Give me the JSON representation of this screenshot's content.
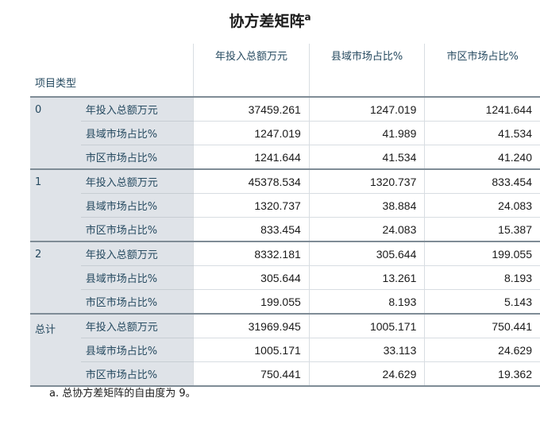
{
  "title": "协方差矩阵",
  "title_sup": "a",
  "header": {
    "row_label": "项目类型",
    "columns": [
      "年投入总额万元",
      "县域市场占比%",
      "市区市场占比%"
    ]
  },
  "groups": [
    {
      "label": "0",
      "rows": [
        {
          "label": "年投入总额万元",
          "values": [
            "37459.261",
            "1247.019",
            "1241.644"
          ]
        },
        {
          "label": "县域市场占比%",
          "values": [
            "1247.019",
            "41.989",
            "41.534"
          ]
        },
        {
          "label": "市区市场占比%",
          "values": [
            "1241.644",
            "41.534",
            "41.240"
          ]
        }
      ]
    },
    {
      "label": "1",
      "rows": [
        {
          "label": "年投入总额万元",
          "values": [
            "45378.534",
            "1320.737",
            "833.454"
          ]
        },
        {
          "label": "县域市场占比%",
          "values": [
            "1320.737",
            "38.884",
            "24.083"
          ]
        },
        {
          "label": "市区市场占比%",
          "values": [
            "833.454",
            "24.083",
            "15.387"
          ]
        }
      ]
    },
    {
      "label": "2",
      "rows": [
        {
          "label": "年投入总额万元",
          "values": [
            "8332.181",
            "305.644",
            "199.055"
          ]
        },
        {
          "label": "县域市场占比%",
          "values": [
            "305.644",
            "13.261",
            "8.193"
          ]
        },
        {
          "label": "市区市场占比%",
          "values": [
            "199.055",
            "8.193",
            "5.143"
          ]
        }
      ]
    },
    {
      "label": "总计",
      "rows": [
        {
          "label": "年投入总额万元",
          "values": [
            "31969.945",
            "1005.171",
            "750.441"
          ]
        },
        {
          "label": "县域市场占比%",
          "values": [
            "1005.171",
            "33.113",
            "24.629"
          ]
        },
        {
          "label": "市区市场占比%",
          "values": [
            "750.441",
            "24.629",
            "19.362"
          ]
        }
      ]
    }
  ],
  "footnote": "a. 总协方差矩阵的自由度为 9。"
}
